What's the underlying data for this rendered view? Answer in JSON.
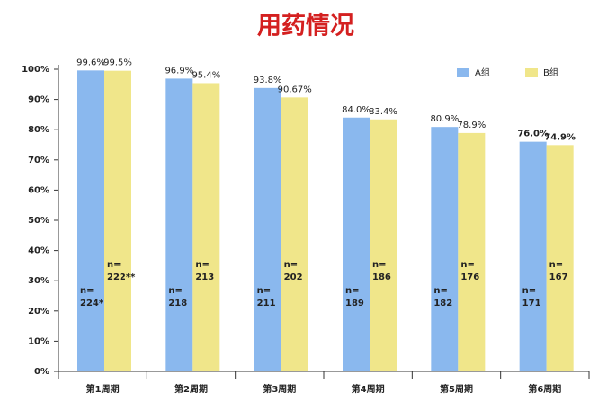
{
  "chart_data": {
    "type": "bar",
    "title": "用药情况",
    "categories": [
      "第1周期",
      "第2周期",
      "第3周期",
      "第4周期",
      "第5周期",
      "第6周期"
    ],
    "series": [
      {
        "name": "A组",
        "color": "#8ab8ee",
        "values": [
          99.6,
          96.9,
          93.8,
          84.0,
          80.9,
          76.0
        ],
        "value_labels": [
          "99.6%",
          "96.9%",
          "93.8%",
          "84.0%",
          "80.9%",
          "76.0%"
        ],
        "annotations": [
          [
            "n=",
            "224*"
          ],
          [
            "n=",
            "218"
          ],
          [
            "n=",
            "211"
          ],
          [
            "n=",
            "189"
          ],
          [
            "n=",
            "182"
          ],
          [
            "n=",
            "171"
          ]
        ]
      },
      {
        "name": "B组",
        "color": "#f0e68a",
        "values": [
          99.5,
          95.4,
          90.67,
          83.4,
          78.9,
          74.9
        ],
        "value_labels": [
          "99.5%",
          "95.4%",
          "90.67%",
          "83.4%",
          "78.9%",
          "74.9%"
        ],
        "annotations": [
          [
            "n=",
            "222**"
          ],
          [
            "n=",
            "213"
          ],
          [
            "n=",
            "202"
          ],
          [
            "n=",
            "186"
          ],
          [
            "n=",
            "176"
          ],
          [
            "n=",
            "167"
          ]
        ]
      }
    ],
    "ylim": [
      0,
      100
    ],
    "yticks": [
      {
        "value": 0,
        "label": "0%"
      },
      {
        "value": 10,
        "label": "10%"
      },
      {
        "value": 20,
        "label": "20%"
      },
      {
        "value": 30,
        "label": "30%"
      },
      {
        "value": 40,
        "label": "40%"
      },
      {
        "value": 50,
        "label": "50%"
      },
      {
        "value": 60,
        "label": "60%"
      },
      {
        "value": 70,
        "label": "70%"
      },
      {
        "value": 80,
        "label": "80%"
      },
      {
        "value": 90,
        "label": "90%"
      },
      {
        "value": 100,
        "label": "100%"
      }
    ],
    "grid": false,
    "legend": "top-right",
    "highlight": {
      "index": 5,
      "color": "#cc1a1a"
    }
  }
}
